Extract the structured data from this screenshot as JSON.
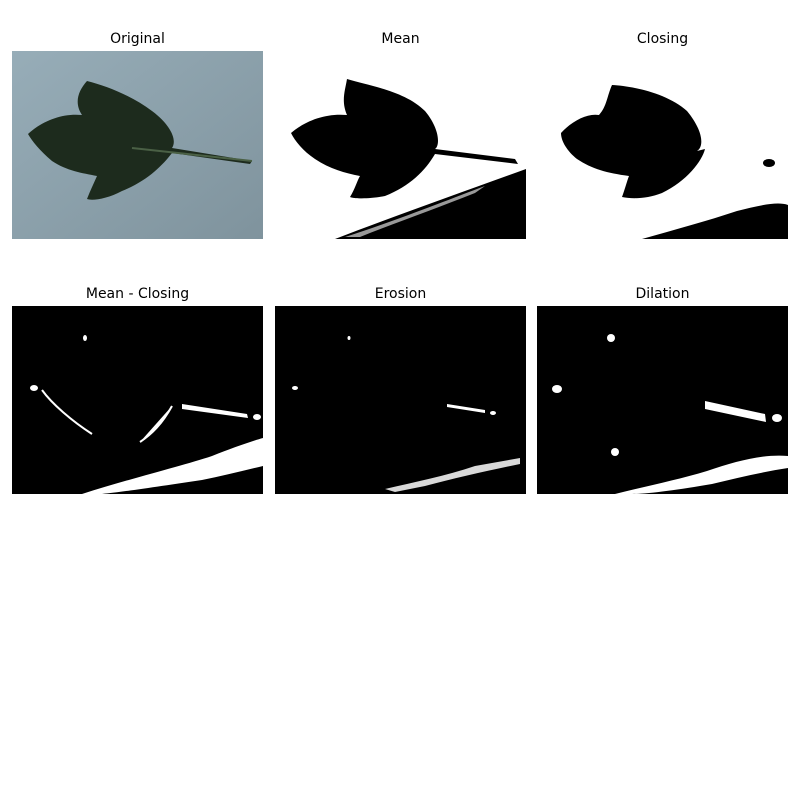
{
  "panels": [
    {
      "id": "original",
      "title": "Original"
    },
    {
      "id": "mean",
      "title": "Mean"
    },
    {
      "id": "closing",
      "title": "Closing"
    },
    {
      "id": "mean_closing",
      "title": "Mean - Closing"
    },
    {
      "id": "erosion",
      "title": "Erosion"
    },
    {
      "id": "dilation",
      "title": "Dilation"
    }
  ],
  "colors": {
    "background_photo": "#8fa4b0",
    "leaf": "#1c2a1c",
    "mask_black": "#000000",
    "mask_white": "#ffffff"
  }
}
